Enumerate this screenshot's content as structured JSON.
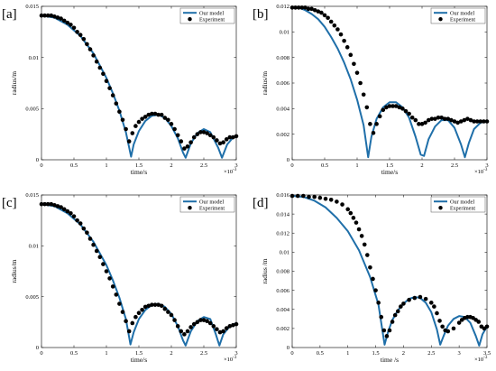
{
  "chart_data": [
    {
      "panel_label": "[a]",
      "type": "line",
      "xlabel": "time/s",
      "ylabel": "radius/m",
      "x_exponent_label": "×10",
      "x_exponent_power": "-3",
      "xlim": [
        0,
        3
      ],
      "ylim": [
        0,
        0.015
      ],
      "x_ticks": [
        "0",
        "0.5",
        "1",
        "1.5",
        "2",
        "2.5",
        "3"
      ],
      "x_tick_values": [
        0,
        0.5,
        1,
        1.5,
        2,
        2.5,
        3
      ],
      "y_ticks": [
        "0",
        "0.005",
        "0.01",
        "0.015"
      ],
      "y_tick_values": [
        0,
        0.005,
        0.01,
        0.015
      ],
      "legend": [
        "Our model",
        "Experiment"
      ],
      "legend_position": "top-right",
      "series": [
        {
          "name": "Our model",
          "kind": "line",
          "color": "#1f6fa9",
          "x": [
            0,
            0.2,
            0.4,
            0.6,
            0.8,
            1.0,
            1.1,
            1.2,
            1.3,
            1.38,
            1.42,
            1.5,
            1.6,
            1.7,
            1.8,
            1.9,
            2.0,
            2.1,
            2.18,
            2.22,
            2.3,
            2.4,
            2.5,
            2.6,
            2.72,
            2.78,
            2.86,
            2.94,
            3.0
          ],
          "y": [
            0.0141,
            0.0139,
            0.0132,
            0.0121,
            0.0104,
            0.008,
            0.0065,
            0.0048,
            0.0027,
            0.0003,
            0.0015,
            0.0028,
            0.0038,
            0.0043,
            0.0044,
            0.0041,
            0.0033,
            0.0021,
            0.0007,
            0.0002,
            0.0016,
            0.0026,
            0.003,
            0.0027,
            0.0012,
            0.0002,
            0.0015,
            0.0021,
            0.0023
          ]
        },
        {
          "name": "Experiment",
          "kind": "scatter",
          "color": "#000000",
          "x": [
            0,
            0.05,
            0.1,
            0.15,
            0.2,
            0.25,
            0.3,
            0.35,
            0.4,
            0.45,
            0.5,
            0.55,
            0.6,
            0.65,
            0.7,
            0.75,
            0.8,
            0.85,
            0.9,
            0.95,
            1.0,
            1.05,
            1.1,
            1.15,
            1.2,
            1.25,
            1.3,
            1.35,
            1.4,
            1.45,
            1.5,
            1.55,
            1.6,
            1.65,
            1.7,
            1.75,
            1.8,
            1.85,
            1.9,
            1.95,
            2.0,
            2.05,
            2.1,
            2.15,
            2.2,
            2.25,
            2.3,
            2.35,
            2.4,
            2.45,
            2.5,
            2.55,
            2.6,
            2.65,
            2.7,
            2.75,
            2.8,
            2.85,
            2.9,
            2.95,
            3.0
          ],
          "y": [
            0.0141,
            0.0141,
            0.0141,
            0.0141,
            0.014,
            0.0139,
            0.0138,
            0.0136,
            0.0134,
            0.0132,
            0.0129,
            0.0125,
            0.0122,
            0.0118,
            0.0113,
            0.0108,
            0.0102,
            0.0096,
            0.009,
            0.0084,
            0.0077,
            0.007,
            0.0063,
            0.0055,
            0.0047,
            0.0039,
            0.003,
            0.0018,
            0.0026,
            0.0033,
            0.0037,
            0.004,
            0.0042,
            0.0044,
            0.0045,
            0.0045,
            0.0044,
            0.0044,
            0.0041,
            0.0039,
            0.0035,
            0.003,
            0.0024,
            0.0018,
            0.0011,
            0.0013,
            0.0017,
            0.0022,
            0.0025,
            0.0027,
            0.0027,
            0.0026,
            0.0024,
            0.0022,
            0.0019,
            0.0016,
            0.0017,
            0.002,
            0.0022,
            0.0022,
            0.0023
          ]
        }
      ]
    },
    {
      "panel_label": "[b]",
      "type": "line",
      "xlabel": "time/s",
      "ylabel": "radius/m",
      "x_exponent_label": "×10",
      "x_exponent_power": "-3",
      "xlim": [
        0,
        3
      ],
      "ylim": [
        0,
        0.012
      ],
      "x_ticks": [
        "0",
        "0.5",
        "1",
        "1.5",
        "2",
        "2.5",
        "3"
      ],
      "x_tick_values": [
        0,
        0.5,
        1,
        1.5,
        2,
        2.5,
        3
      ],
      "y_ticks": [
        "0",
        "0.002",
        "0.004",
        "0.006",
        "0.008",
        "0.01",
        "0.012"
      ],
      "y_tick_values": [
        0,
        0.002,
        0.004,
        0.006,
        0.008,
        0.01,
        0.012
      ],
      "legend": [
        "Our model",
        "Experiment"
      ],
      "legend_position": "top-right",
      "series": [
        {
          "name": "Our model",
          "kind": "line",
          "color": "#1f6fa9",
          "x": [
            0,
            0.1,
            0.2,
            0.3,
            0.4,
            0.5,
            0.6,
            0.7,
            0.8,
            0.9,
            1.0,
            1.1,
            1.17,
            1.22,
            1.3,
            1.4,
            1.5,
            1.6,
            1.7,
            1.8,
            1.9,
            1.98,
            2.03,
            2.1,
            2.2,
            2.3,
            2.4,
            2.5,
            2.6,
            2.66,
            2.72,
            2.8,
            2.9,
            3.0
          ],
          "y": [
            0.0119,
            0.0119,
            0.0117,
            0.0114,
            0.011,
            0.0104,
            0.0096,
            0.0087,
            0.0076,
            0.0063,
            0.0047,
            0.0027,
            0.0002,
            0.0018,
            0.0032,
            0.0041,
            0.0045,
            0.0045,
            0.0041,
            0.0033,
            0.0018,
            0.0004,
            0.0003,
            0.0016,
            0.0026,
            0.0031,
            0.0031,
            0.0025,
            0.0012,
            0.0002,
            0.0013,
            0.0024,
            0.0029,
            0.003
          ]
        },
        {
          "name": "Experiment",
          "kind": "scatter",
          "color": "#000000",
          "x": [
            0,
            0.05,
            0.1,
            0.15,
            0.2,
            0.25,
            0.3,
            0.35,
            0.4,
            0.45,
            0.5,
            0.55,
            0.6,
            0.65,
            0.7,
            0.75,
            0.8,
            0.85,
            0.9,
            0.95,
            1.0,
            1.05,
            1.1,
            1.15,
            1.2,
            1.25,
            1.3,
            1.35,
            1.4,
            1.45,
            1.5,
            1.55,
            1.6,
            1.65,
            1.7,
            1.75,
            1.8,
            1.85,
            1.9,
            1.95,
            2.0,
            2.05,
            2.1,
            2.15,
            2.2,
            2.25,
            2.3,
            2.35,
            2.4,
            2.45,
            2.5,
            2.55,
            2.6,
            2.65,
            2.7,
            2.75,
            2.8,
            2.85,
            2.9,
            2.95,
            3.0
          ],
          "y": [
            0.0119,
            0.0119,
            0.0119,
            0.0119,
            0.0119,
            0.0118,
            0.0118,
            0.0117,
            0.0116,
            0.0115,
            0.0113,
            0.0111,
            0.0108,
            0.0105,
            0.0102,
            0.0098,
            0.0093,
            0.0088,
            0.0082,
            0.0075,
            0.0068,
            0.006,
            0.0051,
            0.0041,
            0.0028,
            0.0021,
            0.0028,
            0.0034,
            0.0039,
            0.0041,
            0.0042,
            0.0042,
            0.0042,
            0.0041,
            0.004,
            0.0038,
            0.0036,
            0.0033,
            0.0031,
            0.0028,
            0.0028,
            0.0029,
            0.0031,
            0.0032,
            0.0032,
            0.0033,
            0.0033,
            0.0032,
            0.0032,
            0.0031,
            0.003,
            0.0029,
            0.003,
            0.0031,
            0.0032,
            0.0031,
            0.003,
            0.003,
            0.003,
            0.003,
            0.003
          ]
        }
      ]
    },
    {
      "panel_label": "[c]",
      "type": "line",
      "xlabel": "time/s",
      "ylabel": "radius/m",
      "x_exponent_label": "×10",
      "x_exponent_power": "-3",
      "xlim": [
        0,
        3
      ],
      "ylim": [
        0,
        0.015
      ],
      "x_ticks": [
        "0",
        "0.5",
        "1",
        "1.5",
        "2",
        "2.5",
        "3"
      ],
      "x_tick_values": [
        0,
        0.5,
        1,
        1.5,
        2,
        2.5,
        3
      ],
      "y_ticks": [
        "0",
        "0.005",
        "0.01",
        "0.015"
      ],
      "y_tick_values": [
        0,
        0.005,
        0.01,
        0.015
      ],
      "legend": [
        "Our model",
        "Experiment"
      ],
      "legend_position": "top-right",
      "series": [
        {
          "name": "Our model",
          "kind": "line",
          "color": "#1f6fa9",
          "x": [
            0,
            0.2,
            0.4,
            0.6,
            0.8,
            1.0,
            1.1,
            1.2,
            1.3,
            1.37,
            1.42,
            1.5,
            1.6,
            1.7,
            1.8,
            1.9,
            2.0,
            2.1,
            2.18,
            2.22,
            2.3,
            2.4,
            2.5,
            2.6,
            2.68,
            2.74,
            2.8,
            2.9,
            3.0
          ],
          "y": [
            0.0141,
            0.0139,
            0.0132,
            0.0121,
            0.0104,
            0.0081,
            0.0066,
            0.0049,
            0.0028,
            0.0003,
            0.0015,
            0.0028,
            0.0037,
            0.0042,
            0.0043,
            0.004,
            0.0033,
            0.0021,
            0.0007,
            0.0002,
            0.0016,
            0.0026,
            0.003,
            0.0028,
            0.0014,
            0.0002,
            0.0013,
            0.0021,
            0.0024
          ]
        },
        {
          "name": "Experiment",
          "kind": "scatter",
          "color": "#000000",
          "x": [
            0,
            0.05,
            0.1,
            0.15,
            0.2,
            0.25,
            0.3,
            0.35,
            0.4,
            0.45,
            0.5,
            0.55,
            0.6,
            0.65,
            0.7,
            0.75,
            0.8,
            0.85,
            0.9,
            0.95,
            1.0,
            1.05,
            1.1,
            1.15,
            1.2,
            1.25,
            1.3,
            1.35,
            1.4,
            1.45,
            1.5,
            1.55,
            1.6,
            1.65,
            1.7,
            1.75,
            1.8,
            1.85,
            1.9,
            1.95,
            2.0,
            2.05,
            2.1,
            2.15,
            2.2,
            2.25,
            2.3,
            2.35,
            2.4,
            2.45,
            2.5,
            2.55,
            2.6,
            2.65,
            2.7,
            2.75,
            2.8,
            2.85,
            2.9,
            2.95,
            3.0
          ],
          "y": [
            0.0141,
            0.0141,
            0.0141,
            0.0141,
            0.014,
            0.0139,
            0.0138,
            0.0136,
            0.0134,
            0.0132,
            0.0129,
            0.0125,
            0.0122,
            0.0117,
            0.0113,
            0.0107,
            0.0101,
            0.0095,
            0.0089,
            0.0082,
            0.0075,
            0.0068,
            0.006,
            0.0052,
            0.0043,
            0.0035,
            0.0026,
            0.0016,
            0.0024,
            0.003,
            0.0034,
            0.0037,
            0.004,
            0.0041,
            0.0042,
            0.0042,
            0.0042,
            0.0041,
            0.0038,
            0.0035,
            0.0032,
            0.0027,
            0.0021,
            0.0016,
            0.0013,
            0.0016,
            0.002,
            0.0023,
            0.0025,
            0.0027,
            0.0027,
            0.0026,
            0.0024,
            0.0021,
            0.0018,
            0.0015,
            0.0016,
            0.0019,
            0.0021,
            0.0022,
            0.0023
          ]
        }
      ]
    },
    {
      "panel_label": "[d]",
      "type": "line",
      "xlabel": "time /s",
      "ylabel": "radius /m",
      "x_exponent_label": "×10",
      "x_exponent_power": "-3",
      "xlim": [
        0,
        3.5
      ],
      "ylim": [
        0,
        0.016
      ],
      "x_ticks": [
        "0",
        "0.5",
        "1",
        "1.5",
        "2",
        "2.5",
        "3",
        "3.5"
      ],
      "x_tick_values": [
        0,
        0.5,
        1,
        1.5,
        2,
        2.5,
        3,
        3.5
      ],
      "y_ticks": [
        "0",
        "0.002",
        "0.004",
        "0.006",
        "0.008",
        "0.01",
        "0.012",
        "0.014",
        "0.016"
      ],
      "y_tick_values": [
        0,
        0.002,
        0.004,
        0.006,
        0.008,
        0.01,
        0.012,
        0.014,
        0.016
      ],
      "legend": [
        "Our model",
        "Experiment"
      ],
      "legend_position": "top-right",
      "series": [
        {
          "name": "Our model",
          "kind": "line",
          "color": "#1f6fa9",
          "x": [
            0,
            0.2,
            0.4,
            0.6,
            0.8,
            1.0,
            1.2,
            1.4,
            1.55,
            1.66,
            1.72,
            1.8,
            1.9,
            2.0,
            2.1,
            2.2,
            2.3,
            2.4,
            2.5,
            2.6,
            2.66,
            2.72,
            2.8,
            2.9,
            3.0,
            3.1,
            3.2,
            3.3,
            3.36,
            3.42,
            3.5
          ],
          "y": [
            0.0159,
            0.0158,
            0.0154,
            0.0147,
            0.0136,
            0.0122,
            0.0102,
            0.0074,
            0.0045,
            0.0003,
            0.0016,
            0.0029,
            0.0039,
            0.0046,
            0.0051,
            0.0053,
            0.0052,
            0.0047,
            0.0037,
            0.0019,
            0.0003,
            0.0012,
            0.0023,
            0.003,
            0.0033,
            0.0032,
            0.0026,
            0.0012,
            0.0002,
            0.0014,
            0.0022
          ]
        },
        {
          "name": "Experiment",
          "kind": "scatter",
          "color": "#000000",
          "x": [
            0,
            0.1,
            0.2,
            0.3,
            0.4,
            0.5,
            0.6,
            0.7,
            0.8,
            0.9,
            1.0,
            1.05,
            1.1,
            1.15,
            1.2,
            1.25,
            1.3,
            1.35,
            1.4,
            1.45,
            1.5,
            1.55,
            1.6,
            1.65,
            1.7,
            1.75,
            1.8,
            1.85,
            1.9,
            1.95,
            2.0,
            2.1,
            2.2,
            2.3,
            2.4,
            2.5,
            2.55,
            2.6,
            2.65,
            2.7,
            2.75,
            2.8,
            2.9,
            3.0,
            3.05,
            3.1,
            3.15,
            3.2,
            3.25,
            3.3,
            3.35,
            3.4,
            3.45,
            3.5
          ],
          "y": [
            0.0159,
            0.0159,
            0.0159,
            0.0158,
            0.0158,
            0.0157,
            0.0156,
            0.0155,
            0.0153,
            0.015,
            0.0145,
            0.0141,
            0.0136,
            0.0131,
            0.0124,
            0.0117,
            0.0108,
            0.0097,
            0.0084,
            0.0072,
            0.006,
            0.0047,
            0.0032,
            0.0018,
            0.0012,
            0.0018,
            0.0027,
            0.0034,
            0.0038,
            0.0043,
            0.0046,
            0.005,
            0.0052,
            0.0053,
            0.0051,
            0.0047,
            0.0043,
            0.0036,
            0.0028,
            0.0022,
            0.0018,
            0.0017,
            0.002,
            0.0026,
            0.0029,
            0.0031,
            0.0032,
            0.0032,
            0.0031,
            0.0029,
            0.0027,
            0.0022,
            0.002,
            0.0022
          ]
        }
      ]
    }
  ]
}
